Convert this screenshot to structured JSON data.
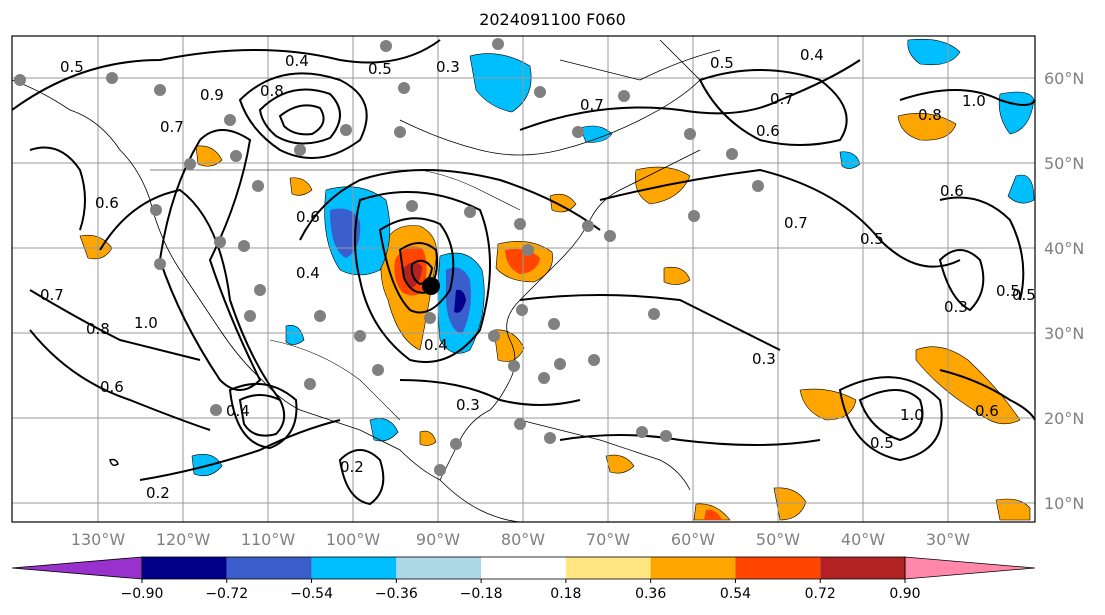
{
  "title": "2024091100 F060",
  "lat_labels": [
    "60°N",
    "50°N",
    "40°N",
    "30°N",
    "20°N",
    "10°N"
  ],
  "lon_labels": [
    "130°W",
    "120°W",
    "110°W",
    "100°W",
    "90°W",
    "80°W",
    "70°W",
    "60°W",
    "50°W",
    "40°W",
    "30°W"
  ],
  "colorbar": {
    "colors": [
      "#9932cc",
      "#00008b",
      "#3a5fcd",
      "#00bfff",
      "#add8e6",
      "#ffffff",
      "#ffe680",
      "#ffa500",
      "#ff4500",
      "#b22222",
      "#ff88aa"
    ],
    "tick_labels": [
      "−0.90",
      "−0.72",
      "−0.54",
      "−0.36",
      "−0.18",
      "0.18",
      "0.36",
      "0.54",
      "0.72",
      "0.90"
    ]
  },
  "contour_labels": [
    "0.5",
    "0.4",
    "0.5",
    "0.3",
    "0.5",
    "0.4",
    "0.6",
    "0.7",
    "0.7",
    "0.6",
    "0.8",
    "1.0",
    "0.8",
    "0.9",
    "0.7",
    "0.6",
    "0.6",
    "0.5",
    "0.7",
    "0.8",
    "1.0",
    "0.6",
    "0.4",
    "0.2",
    "0.2",
    "0.3",
    "0.3",
    "0.5",
    "0.6",
    "0.4",
    "0.5",
    "0.3",
    "0.7",
    "1.0",
    "0.4",
    "0.5"
  ]
}
